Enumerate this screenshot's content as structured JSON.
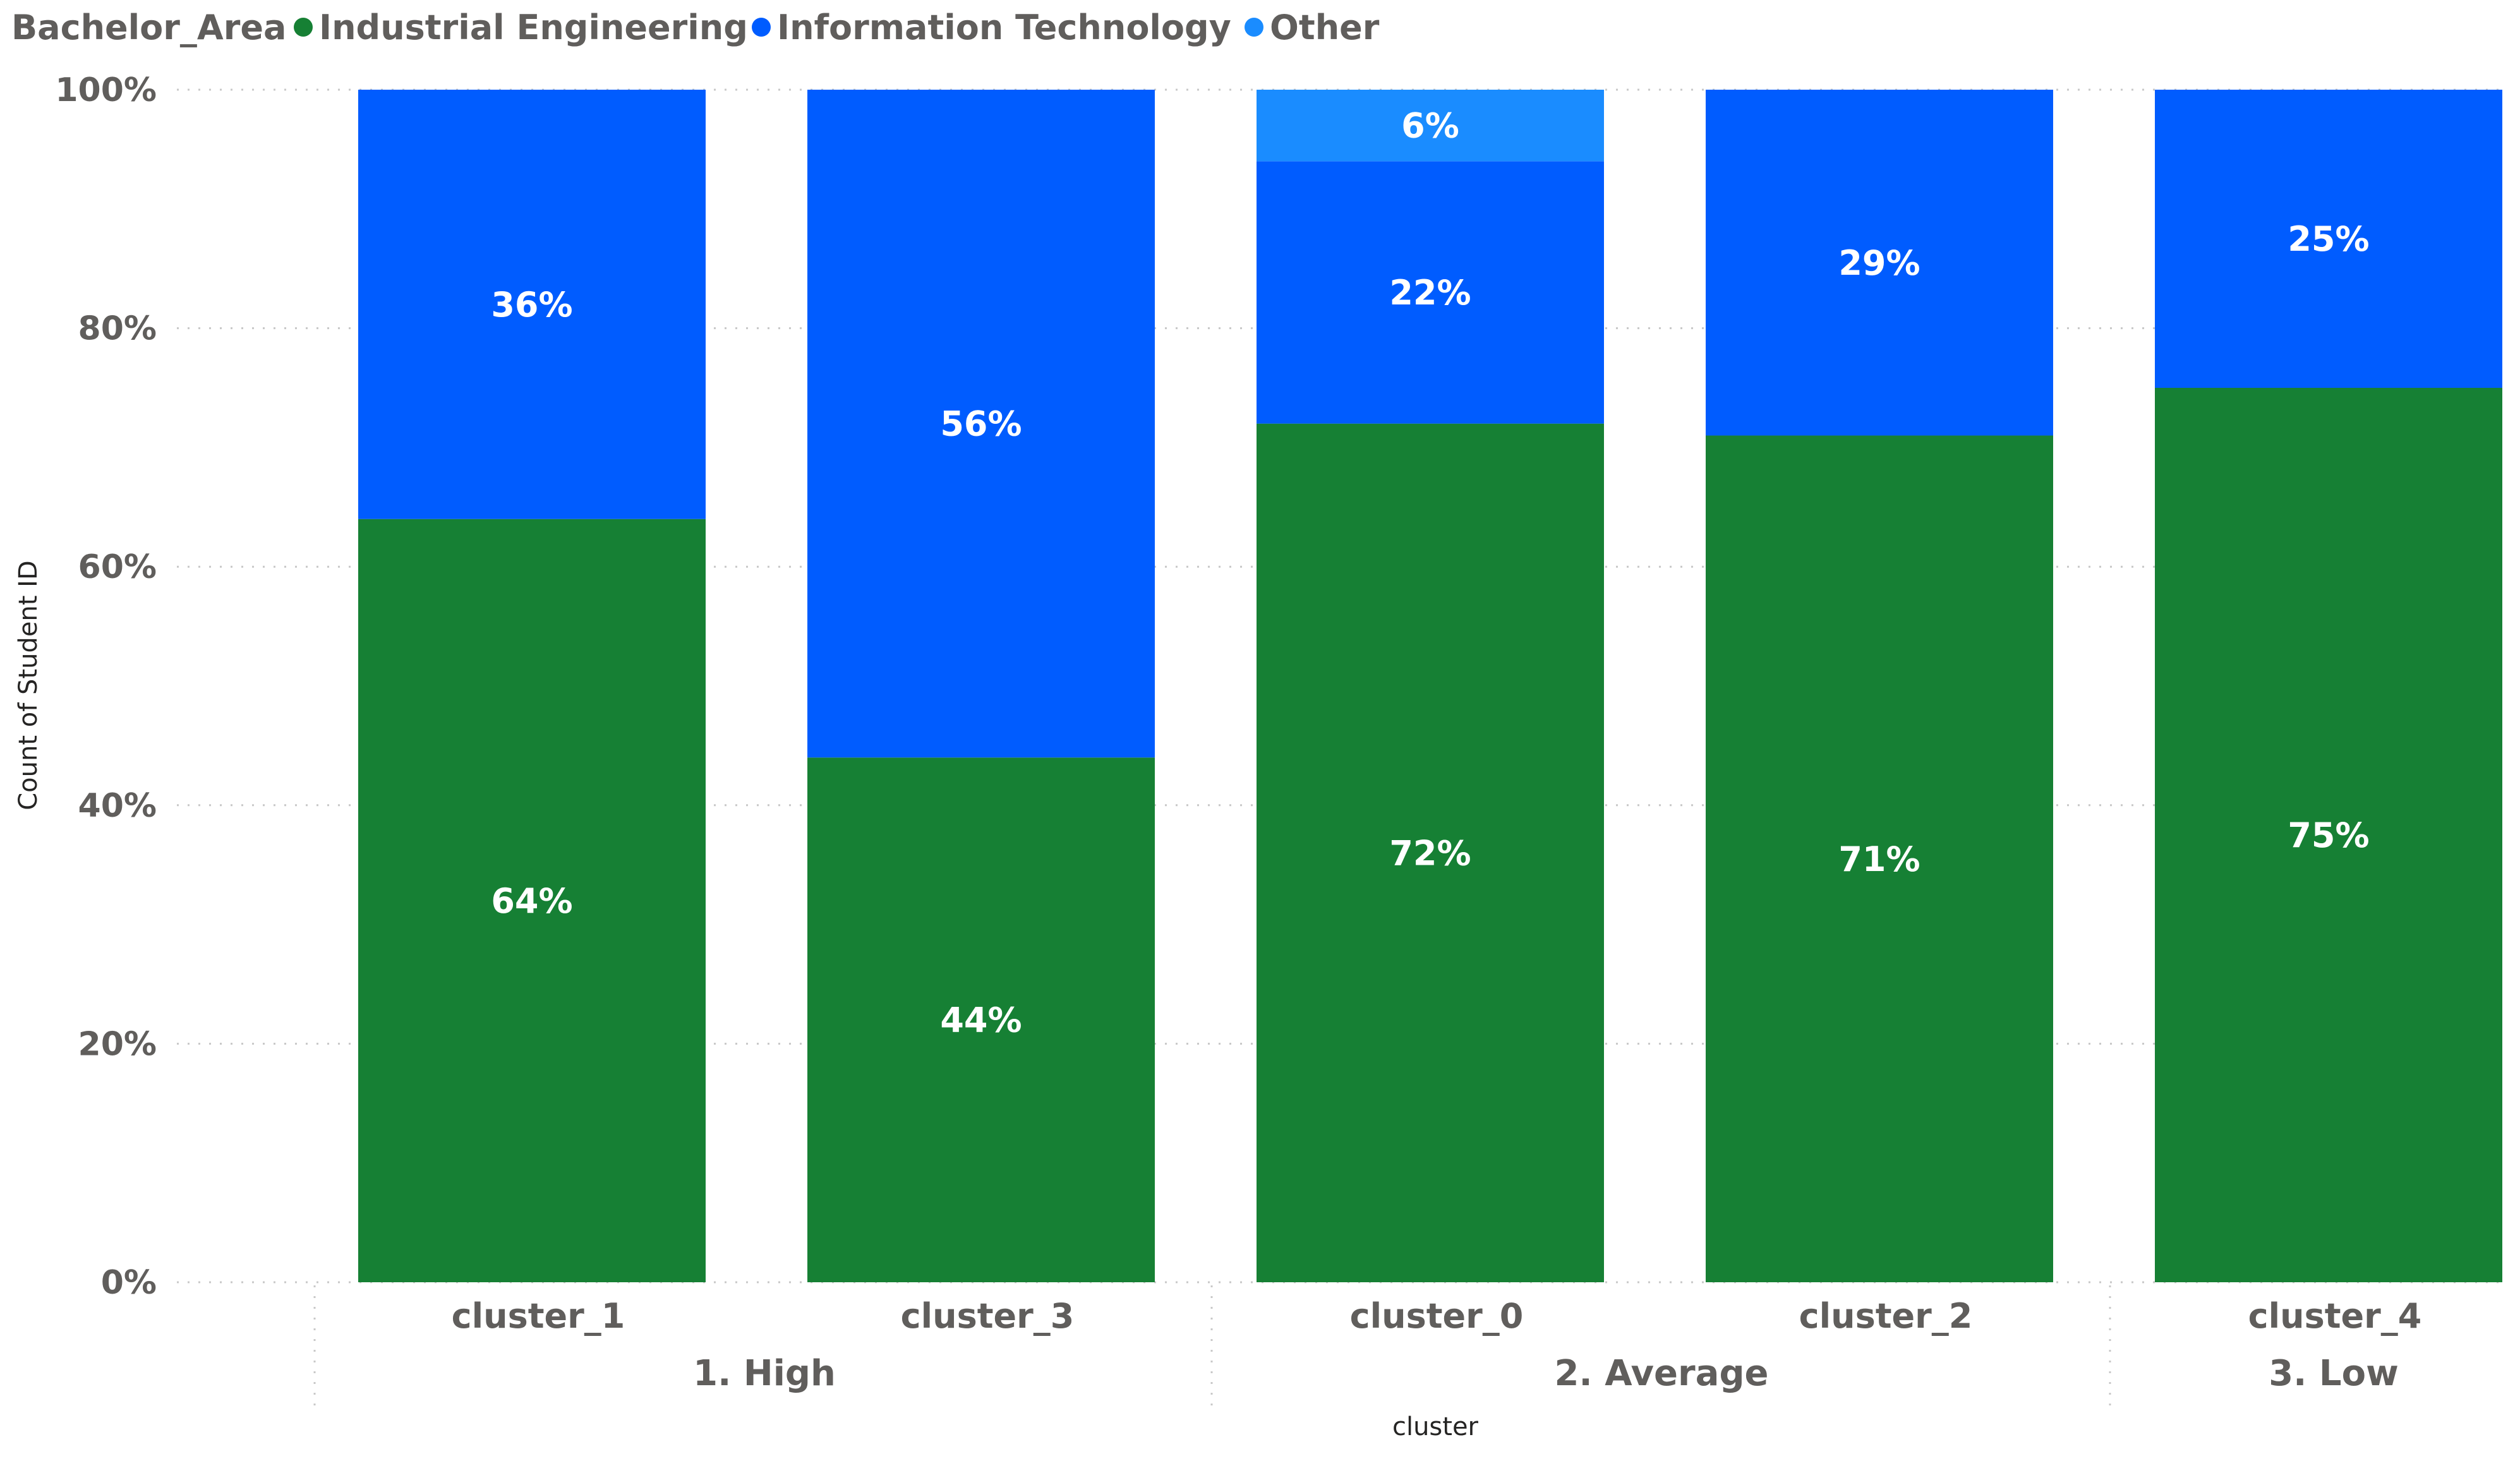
{
  "chart_data": {
    "type": "bar",
    "stacked": "100%",
    "legend_title": "Bachelor_Area",
    "legend_position": "top-left",
    "ylabel": "Count of Student ID",
    "xlabel": "cluster",
    "ylim": [
      0,
      1
    ],
    "y_ticks": [
      "0%",
      "20%",
      "40%",
      "60%",
      "80%",
      "100%"
    ],
    "grid": true,
    "categories": [
      "cluster_1",
      "cluster_3",
      "cluster_0",
      "cluster_2",
      "cluster_4"
    ],
    "groups": [
      {
        "label": "1. High",
        "categories": [
          "cluster_1",
          "cluster_3"
        ]
      },
      {
        "label": "2. Average",
        "categories": [
          "cluster_0",
          "cluster_2"
        ]
      },
      {
        "label": "3. Low",
        "categories": [
          "cluster_4"
        ]
      }
    ],
    "series": [
      {
        "name": "Industrial Engineering",
        "color": "#168034",
        "values": [
          0.64,
          0.44,
          0.72,
          0.71,
          0.75
        ],
        "labels": [
          "64%",
          "44%",
          "72%",
          "71%",
          "75%"
        ]
      },
      {
        "name": "Information Technology",
        "color": "#005cff",
        "values": [
          0.36,
          0.56,
          0.22,
          0.29,
          0.25
        ],
        "labels": [
          "36%",
          "56%",
          "22%",
          "29%",
          "25%"
        ]
      },
      {
        "name": "Other",
        "color": "#1a8cff",
        "values": [
          0,
          0,
          0.06,
          0,
          0
        ],
        "labels": [
          "",
          "",
          "6%",
          "",
          ""
        ]
      }
    ]
  }
}
